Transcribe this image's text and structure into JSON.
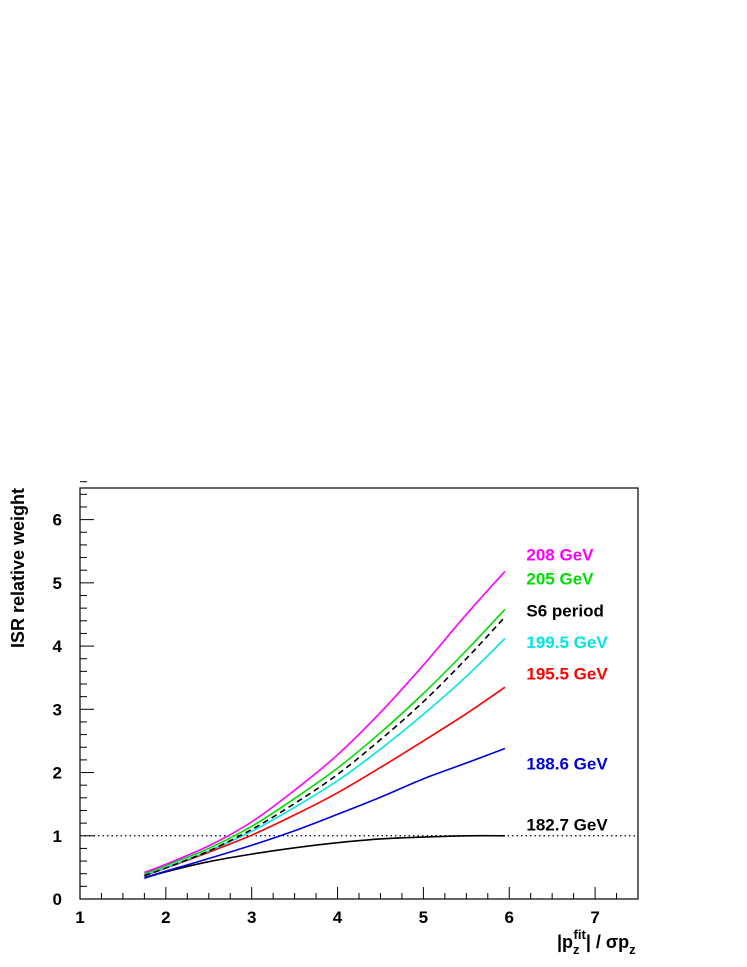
{
  "chart_data": {
    "type": "line",
    "title": "",
    "xlabel": "|p_z^fit| / σp_z",
    "xlabel_parts": {
      "prefix": "|p",
      "sub1": "z",
      "sup": "fit",
      "middle": "| / σp",
      "sub2": "z"
    },
    "ylabel": "ISR relative weight",
    "xlim": [
      1,
      7.5
    ],
    "ylim": [
      0,
      6.5
    ],
    "x_ticks": [
      "1",
      "2",
      "3",
      "4",
      "5",
      "6",
      "7"
    ],
    "y_ticks": [
      "0",
      "1",
      "2",
      "3",
      "4",
      "5",
      "6"
    ],
    "grid": false,
    "reference_line": {
      "y": 1,
      "style": "dotted"
    },
    "x": [
      1.75,
      2.0,
      2.5,
      3.0,
      3.5,
      4.0,
      4.5,
      5.0,
      5.5,
      5.95
    ],
    "series": [
      {
        "name": "208  GeV",
        "color": "#ff00ff",
        "dash": "solid",
        "values": [
          0.42,
          0.55,
          0.84,
          1.22,
          1.72,
          2.28,
          2.95,
          3.7,
          4.5,
          5.18
        ]
      },
      {
        "name": "205  GeV",
        "color": "#00dd00",
        "dash": "solid",
        "values": [
          0.4,
          0.53,
          0.8,
          1.15,
          1.59,
          2.07,
          2.63,
          3.25,
          3.93,
          4.58
        ]
      },
      {
        "name": "S6 period",
        "color": "#000000",
        "dash": "dashed",
        "values": [
          0.37,
          0.49,
          0.76,
          1.1,
          1.51,
          1.97,
          2.52,
          3.12,
          3.8,
          4.46
        ]
      },
      {
        "name": "199.5  GeV",
        "color": "#00e5e5",
        "dash": "solid",
        "values": [
          0.38,
          0.5,
          0.76,
          1.07,
          1.45,
          1.87,
          2.37,
          2.92,
          3.52,
          4.12
        ]
      },
      {
        "name": "195.5  GeV",
        "color": "#ff0000",
        "dash": "solid",
        "values": [
          0.37,
          0.49,
          0.74,
          1.01,
          1.33,
          1.68,
          2.08,
          2.5,
          2.93,
          3.35
        ]
      },
      {
        "name": "188.6  GeV",
        "color": "#0000dd",
        "dash": "solid",
        "values": [
          0.34,
          0.44,
          0.64,
          0.85,
          1.08,
          1.34,
          1.61,
          1.9,
          2.15,
          2.38
        ]
      },
      {
        "name": "182.7  GeV",
        "color": "#000000",
        "dash": "solid",
        "values": [
          0.33,
          0.43,
          0.59,
          0.71,
          0.81,
          0.89,
          0.95,
          0.98,
          1.0,
          1.0
        ]
      }
    ],
    "labels": [
      {
        "text": "208  GeV",
        "color": "#ff00ff",
        "x": 6.2,
        "y": 5.35
      },
      {
        "text": "205  GeV",
        "color": "#00dd00",
        "x": 6.2,
        "y": 4.97
      },
      {
        "text": "S6 period",
        "color": "#000000",
        "x": 6.2,
        "y": 4.47
      },
      {
        "text": "199.5  GeV",
        "color": "#00e5e5",
        "x": 6.2,
        "y": 3.97
      },
      {
        "text": "195.5  GeV",
        "color": "#ff0000",
        "x": 6.2,
        "y": 3.47
      },
      {
        "text": "188.6  GeV",
        "color": "#0000dd",
        "x": 6.2,
        "y": 2.05
      },
      {
        "text": "182.7  GeV",
        "color": "#000000",
        "x": 6.2,
        "y": 1.08
      }
    ]
  }
}
